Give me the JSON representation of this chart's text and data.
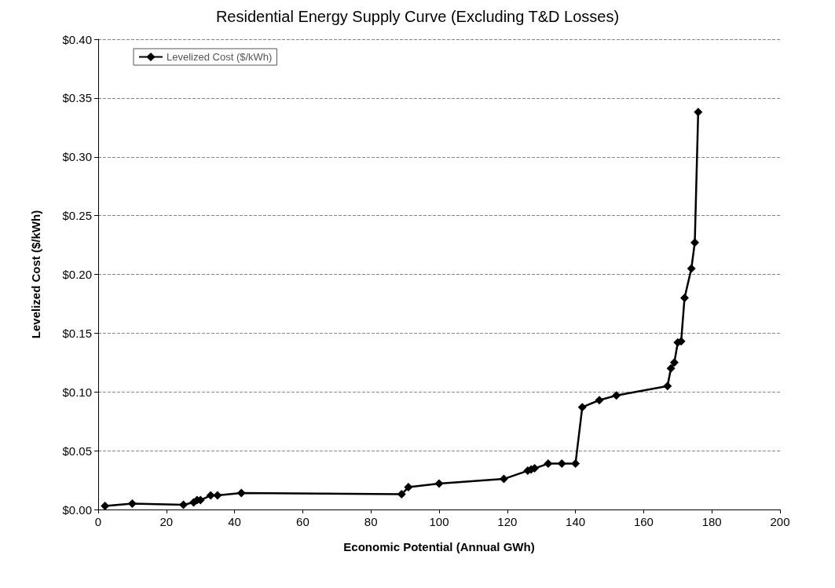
{
  "chart_data": {
    "type": "line",
    "title": "Residential Energy Supply Curve (Excluding T&D Losses)",
    "xlabel": "Economic Potential (Annual GWh)",
    "ylabel": "Levelized Cost ($/kWh)",
    "series": [
      {
        "name": "Levelized Cost ($/kWh)",
        "color": "#000000",
        "x": [
          2,
          10,
          25,
          28,
          29,
          30,
          33,
          35,
          42,
          89,
          91,
          100,
          119,
          126,
          127,
          128,
          132,
          136,
          140,
          142,
          147,
          152,
          167,
          168,
          169,
          170,
          171,
          172,
          174,
          175,
          176
        ],
        "values": [
          0.003,
          0.005,
          0.004,
          0.006,
          0.008,
          0.008,
          0.012,
          0.012,
          0.014,
          0.013,
          0.019,
          0.022,
          0.026,
          0.033,
          0.034,
          0.035,
          0.039,
          0.039,
          0.039,
          0.087,
          0.093,
          0.097,
          0.105,
          0.12,
          0.125,
          0.142,
          0.143,
          0.18,
          0.205,
          0.227,
          0.338
        ]
      }
    ],
    "xlim": [
      0,
      200
    ],
    "xticks": [
      0,
      20,
      40,
      60,
      80,
      100,
      120,
      140,
      160,
      180,
      200
    ],
    "ylim": [
      0,
      0.4
    ],
    "yticks": [
      {
        "value": 0,
        "label": "$0.00"
      },
      {
        "value": 0.05,
        "label": "$0.05"
      },
      {
        "value": 0.1,
        "label": "$0.10"
      },
      {
        "value": 0.15,
        "label": "$0.15"
      },
      {
        "value": 0.2,
        "label": "$0.20"
      },
      {
        "value": 0.25,
        "label": "$0.25"
      },
      {
        "value": 0.3,
        "label": "$0.30"
      },
      {
        "value": 0.35,
        "label": "$0.35"
      },
      {
        "value": 0.4,
        "label": "$0.40"
      }
    ],
    "grid": "y",
    "legend": "top left",
    "marker": "diamond",
    "line_style": "solid"
  }
}
